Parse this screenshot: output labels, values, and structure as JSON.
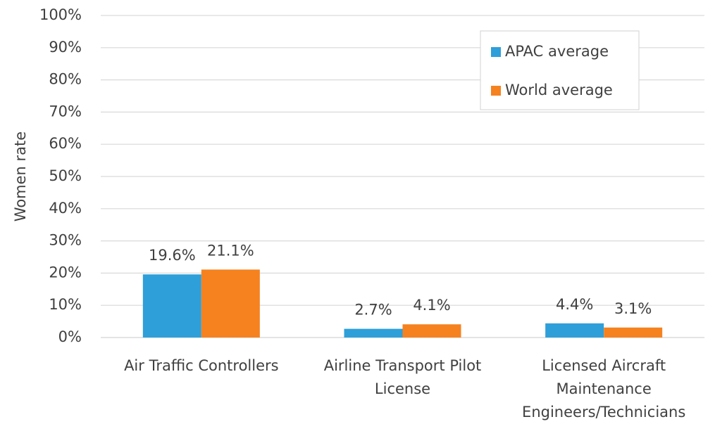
{
  "chart_data": {
    "type": "bar",
    "y_label": "Women rate",
    "categories": [
      "Air Traffic Controllers",
      "Airline Transport Pilot License",
      "Licensed Aircraft Maintenance Engineers/Technicians"
    ],
    "series": [
      {
        "name": "APAC average",
        "color": "#2e9fd9",
        "values": [
          19.6,
          2.7,
          4.4
        ],
        "value_labels": [
          "19.6%",
          "2.7%",
          "4.4%"
        ]
      },
      {
        "name": "World average",
        "color": "#f5821f",
        "values": [
          21.1,
          4.1,
          3.1
        ],
        "value_labels": [
          "21.1%",
          "4.1%",
          "3.1%"
        ]
      }
    ],
    "ylim": [
      0,
      100
    ],
    "yticks": [
      {
        "value": 0,
        "label": "0%"
      },
      {
        "value": 10,
        "label": "10%"
      },
      {
        "value": 20,
        "label": "20%"
      },
      {
        "value": 30,
        "label": "30%"
      },
      {
        "value": 40,
        "label": "40%"
      },
      {
        "value": 50,
        "label": "50%"
      },
      {
        "value": 60,
        "label": "60%"
      },
      {
        "value": 70,
        "label": "70%"
      },
      {
        "value": 80,
        "label": "80%"
      },
      {
        "value": 90,
        "label": "90%"
      },
      {
        "value": 100,
        "label": "100%"
      }
    ],
    "grid": true,
    "legend": "top-right"
  }
}
